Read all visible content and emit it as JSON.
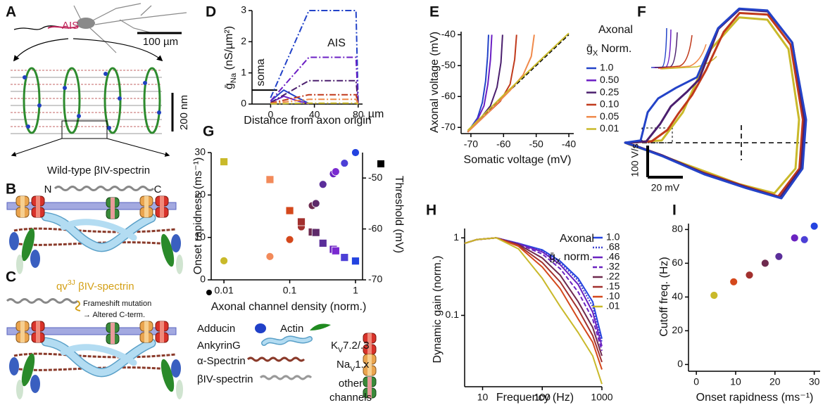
{
  "panel_a": {
    "label": "A",
    "ais": "AIS",
    "scale_soma": "100 µm",
    "scale_lattice": "200 nm",
    "caption": "Wild-type βIV-spectrin"
  },
  "panel_b": {
    "label": "B",
    "n_term": "N",
    "c_term": "C"
  },
  "panel_c": {
    "label": "C",
    "title": {
      "text": "qv",
      "sup": "3J",
      "rest": " βIV-spectrin"
    },
    "note": [
      "Frameshift mutation",
      "→ Altered C-term."
    ]
  },
  "legend": {
    "adducin": "Adducin",
    "actin": "Actin",
    "ankyrin": "AnkyrinG",
    "alpha_spectrin": "α-Spectrin",
    "beta_spectrin": "βIV-spectrin",
    "kv": {
      "text": "K",
      "sub": "V",
      "rest": "7.2/.3"
    },
    "nav": {
      "text": "Na",
      "sub": "V",
      "rest": "1.x"
    },
    "other": [
      "other",
      "channels"
    ]
  },
  "chart_data": [
    {
      "label": "D",
      "type": "line",
      "y_label": {
        "text": "ḡ",
        "sub": "Na",
        "rest": " (nS/µm²)"
      },
      "x_label": "Distance from axon origin",
      "x_unit": "µm",
      "annotations": [
        "soma",
        "AIS"
      ],
      "xlim": [
        -17,
        84
      ],
      "ylim": [
        0,
        3
      ],
      "xticks": [
        0,
        40,
        80
      ],
      "yticks": [
        0,
        1,
        2,
        3
      ],
      "series": [
        {
          "color": "#000000",
          "style": "solid",
          "x": [
            -17,
            6
          ],
          "values": [
            0.45,
            0.45
          ]
        },
        {
          "color": "#2343c8",
          "style": "solid",
          "x": [
            0,
            12,
            25,
            35
          ],
          "values": [
            0.1,
            0.45,
            0.2,
            0.02
          ]
        },
        {
          "color": "#6b1fc4",
          "style": "solid",
          "x": [
            0,
            12,
            25,
            35
          ],
          "values": [
            0.05,
            0.25,
            0.1,
            0.01
          ]
        },
        {
          "color": "#2343c8",
          "style": "dashdot",
          "x": [
            0,
            35,
            78,
            80
          ],
          "values": [
            0.2,
            3,
            3,
            0
          ]
        },
        {
          "color": "#6b1fc4",
          "style": "dashdot",
          "x": [
            0,
            35,
            78,
            80
          ],
          "values": [
            0.1,
            1.5,
            1.5,
            0
          ]
        },
        {
          "color": "#4b1f6e",
          "style": "dashdot",
          "x": [
            0,
            35,
            78,
            80
          ],
          "values": [
            0.05,
            0.75,
            0.75,
            0
          ]
        },
        {
          "color": "#c0391b",
          "style": "dashdot",
          "x": [
            0,
            35,
            78,
            80
          ],
          "values": [
            0.03,
            0.3,
            0.3,
            0
          ]
        },
        {
          "color": "#f08a4b",
          "style": "dashdot",
          "x": [
            0,
            35,
            78,
            80
          ],
          "values": [
            0.02,
            0.15,
            0.15,
            0
          ]
        },
        {
          "color": "#c9b92a",
          "style": "dashdot",
          "x": [
            0,
            35,
            78,
            80
          ],
          "values": [
            0.01,
            0.03,
            0.03,
            0
          ]
        }
      ]
    },
    {
      "label": "E",
      "type": "line",
      "x_label": "Somatic voltage (mV)",
      "y_label": "Axonal voltage (mV)",
      "legend_title": [
        "Axonal",
        {
          "text": "ḡ",
          "sub": "X",
          "rest": " Norm."
        }
      ],
      "xlim": [
        -73,
        -38.5
      ],
      "ylim": [
        -72,
        -39
      ],
      "xticks": [
        -70,
        -60,
        -50,
        -40
      ],
      "yticks": [
        -70,
        -60,
        -50,
        -40
      ],
      "reference": {
        "color": "#000000",
        "style": "dashed",
        "x": [
          -70,
          -40
        ],
        "values": [
          -70,
          -40
        ]
      },
      "series": [
        {
          "name": "1.0",
          "color": "#2343c8",
          "x": [
            -71,
            -68,
            -66.5,
            -65.5,
            -64.9,
            -64.6
          ],
          "values": [
            -71.5,
            -67,
            -62,
            -55,
            -47,
            -40
          ]
        },
        {
          "name": "0.50",
          "color": "#6b1fc4",
          "x": [
            -71,
            -68,
            -66,
            -64.8,
            -64,
            -63.6
          ],
          "values": [
            -71.5,
            -67.5,
            -63,
            -56,
            -48,
            -40
          ]
        },
        {
          "name": "0.25",
          "color": "#4b1f6e",
          "x": [
            -71,
            -67,
            -64,
            -62,
            -60.8,
            -60.3
          ],
          "values": [
            -71.5,
            -67,
            -63,
            -57,
            -49,
            -40
          ]
        },
        {
          "name": "0.10",
          "color": "#c0391b",
          "x": [
            -71,
            -66,
            -61,
            -58,
            -56.6,
            -56
          ],
          "values": [
            -71.5,
            -66.5,
            -61.5,
            -56,
            -48,
            -40
          ]
        },
        {
          "name": "0.05",
          "color": "#f08a4b",
          "x": [
            -71,
            -65,
            -58,
            -54,
            -51.5,
            -50.6
          ],
          "values": [
            -71.5,
            -65.5,
            -58,
            -53,
            -47,
            -40
          ]
        },
        {
          "name": "0.01",
          "color": "#c9b92a",
          "x": [
            -71,
            -60,
            -50,
            -40
          ],
          "values": [
            -71,
            -59.5,
            -49.5,
            -39.5
          ]
        }
      ]
    },
    {
      "label": "F",
      "type": "line",
      "closed": true,
      "xlim": [
        -70,
        33
      ],
      "ylim": [
        -176,
        429
      ],
      "scalebar_x": {
        "value": 20,
        "label": "20 mV"
      },
      "scalebar_y": {
        "value": 100,
        "label": "100 V/s"
      },
      "series": [
        {
          "color": "#c9b92a",
          "x": [
            -70,
            -49.2,
            -37.2,
            -21.2,
            -5.2,
            10.8,
            22.8,
            28.8,
            26.8,
            14.8,
            -5.2,
            -29.2,
            -53.2,
            -67.2
          ],
          "values": [
            0,
            7,
            96,
            296,
            396,
            389,
            296,
            73,
            -82,
            -160,
            -131,
            -82,
            -33,
            -7
          ]
        },
        {
          "color": "#c0391b",
          "x": [
            -70,
            -55,
            -46,
            -40,
            -32,
            -24,
            -14,
            -5,
            11,
            24,
            31,
            29,
            17,
            -2,
            -26,
            -50,
            -66
          ],
          "values": [
            0,
            4,
            40,
            90,
            150,
            230,
            350,
            410,
            405,
            310,
            73,
            -82,
            -170,
            -138,
            -94,
            -38,
            -8
          ]
        },
        {
          "color": "#4b1f6e",
          "x": [
            -70,
            -58,
            -50,
            -44,
            -35,
            -28,
            -17,
            -5,
            11,
            25,
            32,
            30,
            18,
            -1,
            -25,
            -49,
            -65
          ],
          "values": [
            0,
            4,
            60,
            115,
            160,
            200,
            360,
            422,
            415,
            316,
            73,
            -82,
            -174,
            -142,
            -98,
            -40,
            -8
          ]
        },
        {
          "color": "#2343c8",
          "x": [
            -70,
            -61.2,
            -57.2,
            -51.2,
            -41.2,
            -29.2,
            -17.2,
            -5.2,
            10.8,
            24.8,
            32.8,
            30.8,
            18.8,
            -1.2,
            -25.2,
            -49.2,
            -65.2
          ],
          "values": [
            0,
            7,
            96,
            140,
            173,
            207,
            362,
            424,
            418,
            318,
            73,
            -82,
            -176,
            -144,
            -100,
            -42,
            -9
          ]
        }
      ]
    },
    {
      "label": "G",
      "type": "scatter",
      "x_log": true,
      "x_label": "Axonal channel density (norm.)",
      "y_label": "Onset rapidness (ms⁻¹)",
      "y2_label": "Threshold (mV)",
      "xlim": [
        0.0064,
        1.28
      ],
      "xticks": [
        0.01,
        0.1,
        1
      ],
      "ylim": [
        0,
        30
      ],
      "yticks": [
        0,
        10,
        20,
        30
      ],
      "y2lim": [
        -70,
        -45
      ],
      "y2ticks": [
        -70,
        -60,
        -50
      ],
      "x": [
        0.01,
        0.05,
        0.1,
        0.15,
        0.22,
        0.25,
        0.32,
        0.46,
        0.5,
        0.68,
        1.0
      ],
      "colors": [
        "#c9b92a",
        "#f28a5a",
        "#d4481c",
        "#a2302e",
        "#6e2a4e",
        "#5e2a6a",
        "#5b2e9a",
        "#6a22c0",
        "#7a2ad0",
        "#4c3fd6",
        "#2343e0"
      ],
      "series": [
        {
          "marker": "circle",
          "values": [
            4.5,
            5.5,
            9.5,
            12.5,
            17.5,
            18,
            22.5,
            25,
            25.5,
            27.5,
            30
          ]
        },
        {
          "marker": "square",
          "axis": "y2",
          "values": [
            -46.8,
            -50.3,
            -56.4,
            -58.6,
            -60.6,
            -60.7,
            -62.8,
            -64,
            -64.3,
            -65.6,
            -66.3
          ]
        }
      ]
    },
    {
      "label": "H",
      "type": "line",
      "x_log": true,
      "y_log": true,
      "x_label": "Frequency (Hz)",
      "y_label": "Dynamic gain (norm.)",
      "legend_title": [
        "Axonal",
        {
          "text": "ḡ",
          "sub": "X",
          "rest": " norm."
        }
      ],
      "xlim": [
        5,
        1000
      ],
      "ylim": [
        0.012,
        1.32
      ],
      "xticks": [
        10,
        100,
        1000
      ],
      "yticks": [
        0.1,
        1
      ],
      "x": [
        5,
        8,
        17,
        40,
        100,
        200,
        400,
        700,
        1000
      ],
      "series": [
        {
          "name": "1.0",
          "color": "#2343e0",
          "style": "solid",
          "values": [
            0.85,
            0.95,
            1,
            0.85,
            0.7,
            0.5,
            0.3,
            0.15,
            0.05
          ]
        },
        {
          "name": ".68",
          "color": "#3b3fd0",
          "style": "dotted",
          "values": [
            0.85,
            0.95,
            1,
            0.85,
            0.68,
            0.48,
            0.28,
            0.13,
            0.045
          ]
        },
        {
          "name": ".46",
          "color": "#6a22c0",
          "style": "solid",
          "values": [
            0.85,
            0.95,
            1,
            0.84,
            0.66,
            0.45,
            0.25,
            0.11,
            0.04
          ]
        },
        {
          "name": ".32",
          "color": "#6a22c0",
          "style": "dashed",
          "values": [
            0.85,
            0.95,
            1,
            0.83,
            0.62,
            0.4,
            0.2,
            0.09,
            0.035
          ]
        },
        {
          "name": ".22",
          "color": "#6e2a4e",
          "style": "solid",
          "values": [
            0.85,
            0.95,
            1,
            0.82,
            0.55,
            0.33,
            0.15,
            0.07,
            0.03
          ]
        },
        {
          "name": ".15",
          "color": "#a2302e",
          "style": "solid",
          "values": [
            0.85,
            0.95,
            1,
            0.8,
            0.48,
            0.27,
            0.12,
            0.055,
            0.025
          ]
        },
        {
          "name": ".10",
          "color": "#d4481c",
          "style": "solid",
          "values": [
            0.85,
            0.95,
            1,
            0.78,
            0.42,
            0.22,
            0.09,
            0.045,
            0.02
          ]
        },
        {
          "name": ".01",
          "color": "#c9b92a",
          "style": "solid",
          "values": [
            0.85,
            0.95,
            1,
            0.72,
            0.3,
            0.13,
            0.06,
            0.03,
            0.013
          ]
        }
      ]
    },
    {
      "label": "I",
      "type": "scatter",
      "x_label": "Onset rapidness (ms⁻¹)",
      "y_label": "Cutoff freq. (Hz)",
      "xlim": [
        -2,
        31.5
      ],
      "xticks": [
        0,
        10,
        20,
        30
      ],
      "ylim": [
        -4,
        83.5
      ],
      "yticks": [
        0,
        20,
        40,
        60,
        80
      ],
      "x": [
        4.5,
        9.5,
        13.5,
        17.5,
        21,
        25,
        27.5,
        30
      ],
      "colors": [
        "#c9b92a",
        "#d4481c",
        "#a2302e",
        "#6e2a4e",
        "#5b2e9a",
        "#6a22c0",
        "#4c3fd6",
        "#2343e0"
      ],
      "series": [
        {
          "marker": "circle",
          "values": [
            41,
            49,
            53,
            60,
            64,
            75,
            74,
            82
          ]
        }
      ]
    }
  ]
}
